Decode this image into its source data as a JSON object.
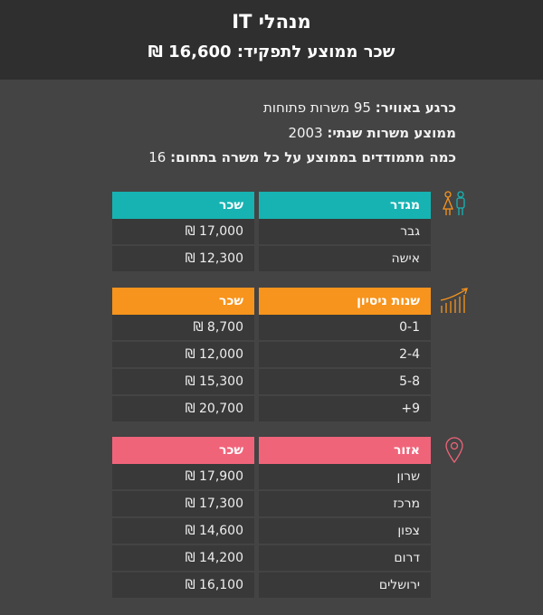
{
  "header": {
    "title": "מנהלי IT",
    "subtitle": "שכר ממוצע לתפקיד: 16,600 ₪"
  },
  "info": [
    {
      "label": "כרגע באוויר:",
      "value": " 95 משרות פתוחות"
    },
    {
      "label": "ממוצע משרות שנתי:",
      "value": " 2003"
    },
    {
      "label": "כמה מתמודדים בממוצע על כל משרה בתחום:",
      "value": " 16"
    }
  ],
  "gender_table": {
    "icon": "gender-icon",
    "color": "#17b3b3",
    "header_category": "מגדר",
    "header_salary": "שכר",
    "rows": [
      {
        "category": "גבר",
        "salary": "17,000 ₪"
      },
      {
        "category": "אישה",
        "salary": "12,300 ₪"
      }
    ]
  },
  "experience_table": {
    "icon": "trending-up-chart-icon",
    "color": "#f7941d",
    "header_category": "שנות ניסיון",
    "header_salary": "שכר",
    "rows": [
      {
        "category": "0-1",
        "salary": "8,700 ₪"
      },
      {
        "category": "2-4",
        "salary": "12,000 ₪"
      },
      {
        "category": "5-8",
        "salary": "15,300 ₪"
      },
      {
        "category": "9+",
        "salary": "20,700 ₪"
      }
    ]
  },
  "region_table": {
    "icon": "map-pin-icon",
    "color": "#f0647a",
    "header_category": "אזור",
    "header_salary": "שכר",
    "rows": [
      {
        "category": "שרון",
        "salary": "17,900 ₪"
      },
      {
        "category": "מרכז",
        "salary": "17,300 ₪"
      },
      {
        "category": "צפון",
        "salary": "14,600 ₪"
      },
      {
        "category": "דרום",
        "salary": "14,200 ₪"
      },
      {
        "category": "ירושלים",
        "salary": "16,100 ₪"
      }
    ]
  }
}
